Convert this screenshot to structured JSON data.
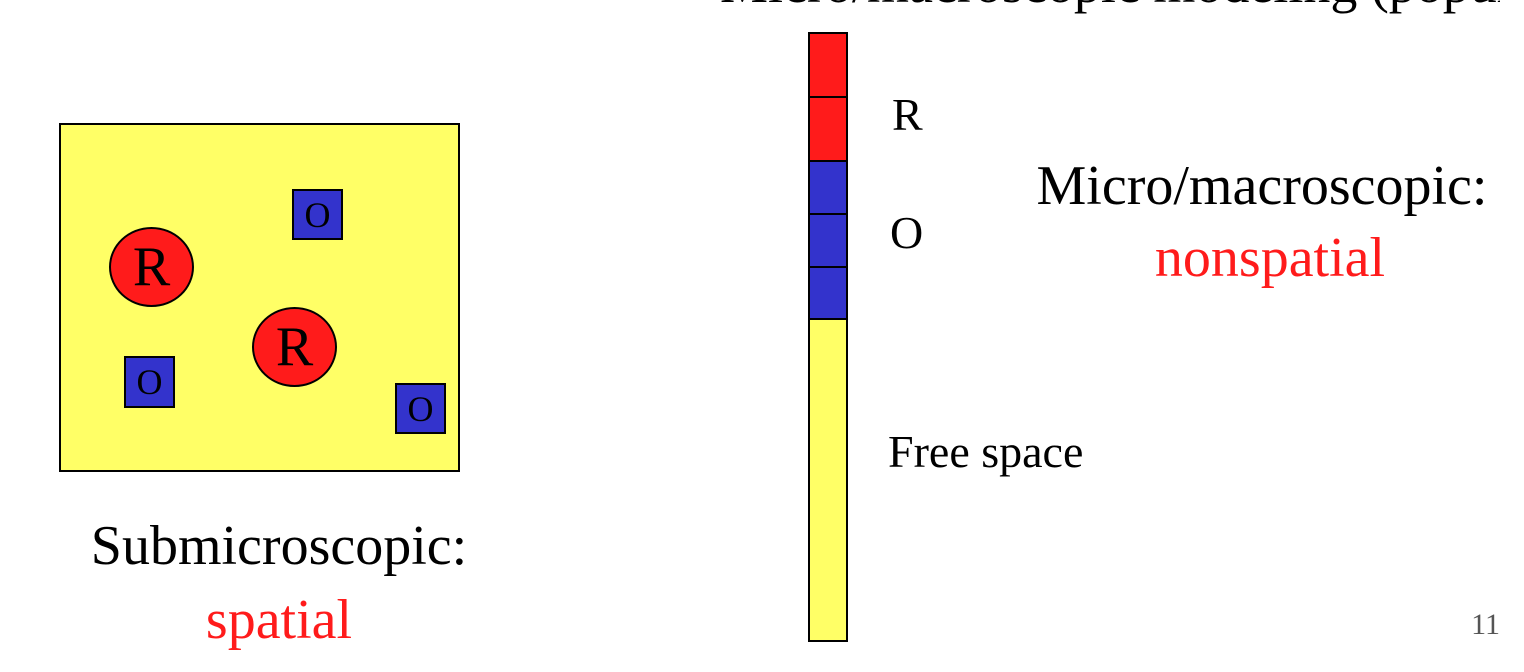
{
  "header": {
    "partial_text": "Micro/macroscopic modeling (population)"
  },
  "colors": {
    "red": "#ff1b1b",
    "blue": "#3333cc",
    "yellow": "#ffff66",
    "accent_red_text": "#ff1b1b"
  },
  "left_panel": {
    "circles": [
      {
        "label": "R"
      },
      {
        "label": "R"
      }
    ],
    "squares": [
      {
        "label": "O"
      },
      {
        "label": "O"
      },
      {
        "label": "O"
      }
    ],
    "caption_line1": "Submicroscopic:",
    "caption_line2": "spatial"
  },
  "bar": {
    "segments": [
      {
        "kind": "R",
        "count": 2
      },
      {
        "kind": "O",
        "count": 3
      },
      {
        "kind": "free",
        "count": 1
      }
    ],
    "labels": {
      "r": "R",
      "o": "O",
      "free": "Free space"
    }
  },
  "right_panel": {
    "caption_line1": "Micro/macroscopic:",
    "caption_line2": "nonspatial"
  },
  "page_number": "11"
}
